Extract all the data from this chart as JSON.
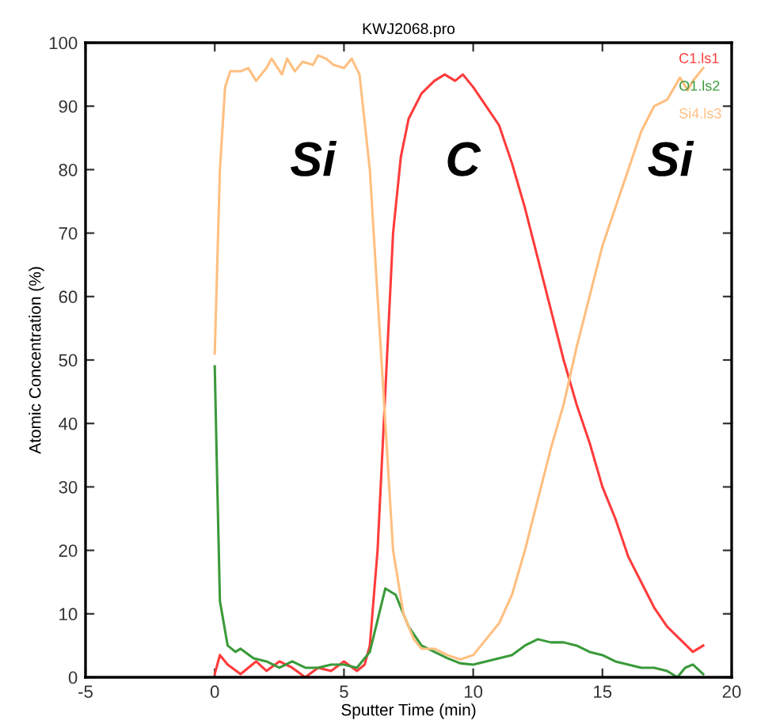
{
  "chart_data": {
    "type": "line",
    "title": "KWJ2068.pro",
    "xlabel": "Sputter Time (min)",
    "ylabel": "Atomic Concentration (%)",
    "xlim": [
      -5,
      20
    ],
    "xticks": [
      -5,
      0,
      5,
      10,
      15,
      20
    ],
    "ylim": [
      0,
      100
    ],
    "yticks": [
      0,
      10,
      20,
      30,
      40,
      50,
      60,
      70,
      80,
      90,
      100
    ],
    "grid": false,
    "legend": "top right",
    "marker": "none",
    "line_style": "solid",
    "annotations": [
      "Si",
      "C",
      "Si"
    ],
    "series": [
      {
        "name": "C1.ls1",
        "color": "#ff3b3b",
        "x": [
          0,
          0.2,
          0.5,
          1,
          1.3,
          1.6,
          2,
          2.5,
          3,
          3.5,
          4,
          4.5,
          5,
          5.5,
          5.8,
          6,
          6.3,
          6.6,
          6.9,
          7.2,
          7.5,
          8,
          8.5,
          8.9,
          9.3,
          9.6,
          10,
          10.5,
          11,
          11.5,
          12,
          12.5,
          13,
          13.5,
          14,
          14.5,
          15,
          15.5,
          16,
          16.5,
          17,
          17.5,
          18,
          18.5,
          18.9
        ],
        "values": [
          0.5,
          3.5,
          2,
          0.5,
          1.5,
          2.5,
          1,
          2.5,
          1.5,
          0,
          1.5,
          1,
          2.5,
          1,
          2,
          5,
          20,
          45,
          70,
          82,
          88,
          92,
          94,
          95,
          94,
          95,
          93,
          90,
          87,
          81,
          74,
          66,
          58,
          50,
          43,
          37,
          30,
          25,
          19,
          15,
          11,
          8,
          6,
          4,
          5
        ]
      },
      {
        "name": "O1.ls2",
        "color": "#3a9a3a",
        "x": [
          0,
          0.1,
          0.2,
          0.5,
          0.8,
          1,
          1.5,
          2,
          2.5,
          3,
          3.5,
          4,
          4.5,
          5,
          5.5,
          6,
          6.3,
          6.6,
          7,
          7.5,
          8,
          8.5,
          9,
          9.5,
          10,
          10.5,
          11,
          11.5,
          12,
          12.5,
          13,
          13.5,
          14,
          14.5,
          15,
          15.5,
          16,
          16.5,
          17,
          17.5,
          17.9,
          18.2,
          18.5,
          18.9
        ],
        "values": [
          49,
          30,
          12,
          5,
          4,
          4.5,
          3,
          2.5,
          1.5,
          2.5,
          1.5,
          1.5,
          2,
          2,
          1.5,
          4,
          9,
          14,
          13,
          8,
          5,
          4,
          3,
          2.2,
          2,
          2.5,
          3,
          3.5,
          5,
          6,
          5.5,
          5.5,
          5,
          4,
          3.5,
          2.5,
          2,
          1.5,
          1.5,
          1,
          0,
          1.5,
          2,
          0.5
        ]
      },
      {
        "name": "Si4.ls3",
        "color": "#ffbf80",
        "x": [
          0,
          0.2,
          0.4,
          0.6,
          1,
          1.3,
          1.6,
          2,
          2.2,
          2.6,
          2.8,
          3.1,
          3.4,
          3.8,
          4,
          4.3,
          4.6,
          5,
          5.3,
          5.6,
          6,
          6.3,
          6.6,
          6.9,
          7.3,
          7.7,
          8,
          8.5,
          9,
          9.5,
          10,
          10.5,
          11,
          11.5,
          12,
          12.5,
          13,
          13.5,
          14,
          14.5,
          15,
          15.5,
          16,
          16.5,
          17,
          17.5,
          18,
          18.3,
          18.5,
          18.9
        ],
        "values": [
          51,
          80,
          93,
          95.5,
          95.5,
          96,
          94,
          96,
          97.5,
          95,
          97.5,
          95.5,
          97,
          96.5,
          98,
          97.5,
          96.5,
          96,
          97.5,
          95,
          80,
          60,
          40,
          20,
          10,
          6,
          4.5,
          4.5,
          3.5,
          2.8,
          3.5,
          6,
          8.5,
          13,
          20,
          28,
          36,
          43,
          52,
          60,
          68,
          74,
          80,
          86,
          90,
          91,
          94.5,
          92.5,
          94,
          96
        ]
      }
    ]
  }
}
